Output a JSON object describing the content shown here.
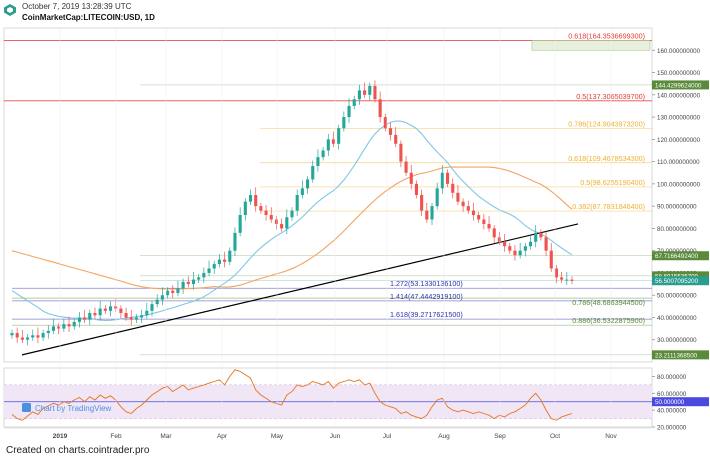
{
  "header": {
    "timestamp": "October 7, 2019 13:28:39 UTC",
    "symbol": "CoinMarketCap:LITECOIN:USD, 1D"
  },
  "footer": {
    "text": "Created on charts.cointrader.pro"
  },
  "watermark": "Chart by TradingView",
  "colors": {
    "candle_up": "#26a69a",
    "candle_down": "#ef5350",
    "ma_fast": "#7ec8e3",
    "ma_slow": "#f4a460",
    "trendline": "#000000",
    "rsi_line": "#e8731c",
    "rsi_band": "#f1e6f6",
    "rsi_mid": "#4a4ae0"
  },
  "chart_data": [
    {
      "type": "candlestick",
      "x_ticks": [
        "2019",
        "Feb",
        "Mar",
        "Apr",
        "May",
        "Jun",
        "Jul",
        "Aug",
        "Sep",
        "Oct",
        "Nov"
      ],
      "y_ticks": [
        "160.000000000",
        "150.000000000",
        "140.000000000",
        "130.000000000",
        "120.000000000",
        "110.000000000",
        "100.000000000",
        "90.000000000",
        "80.000000000",
        "70.000000000",
        "60.000000000",
        "50.000000000",
        "40.000000000",
        "30.000000000"
      ],
      "ylim": [
        20,
        170
      ],
      "price_tags": [
        {
          "label": "144.4299624000",
          "value": 144.43,
          "color": "#5a8a3a"
        },
        {
          "label": "67.7166492400",
          "value": 67.72,
          "color": "#5a8a3a"
        },
        {
          "label": "58.6915535700",
          "value": 58.69,
          "color": "#5a8a3a"
        },
        {
          "label": "56.5007095200",
          "value": 56.5,
          "color": "#2a9d8f"
        },
        {
          "label": "23.2111368500",
          "value": 23.21,
          "color": "#5a8a3a"
        }
      ],
      "fib_levels": [
        {
          "label": "0.618(164.3536699300)",
          "value": 164.35,
          "color": "#e53935"
        },
        {
          "label": "0.5(137.3065039700)",
          "value": 137.31,
          "color": "#e53935"
        },
        {
          "label": "0.786(124.9043973200)",
          "value": 124.9,
          "color": "#f0b030"
        },
        {
          "label": "0.618(109.4678534300)",
          "value": 109.47,
          "color": "#f0b030"
        },
        {
          "label": "0.5(98.6255190400)",
          "value": 98.63,
          "color": "#f0b030"
        },
        {
          "label": "0.382(87.7831846400)",
          "value": 87.78,
          "color": "#f0b030"
        },
        {
          "label": "1.272(53.1330136100)",
          "value": 53.13,
          "color": "#3030b0"
        },
        {
          "label": "1.414(47.4442919100)",
          "value": 47.44,
          "color": "#3030b0"
        },
        {
          "label": "0.786(48.6863944500)",
          "value": 48.69,
          "color": "#5a8a3a"
        },
        {
          "label": "1.618(39.2717621500)",
          "value": 39.27,
          "color": "#3030b0"
        },
        {
          "label": "0.886(36.5322875900)",
          "value": 36.53,
          "color": "#5a8a3a"
        }
      ],
      "closes": [
        33,
        31,
        30,
        31,
        32,
        31,
        33,
        34,
        36,
        35,
        37,
        36,
        38,
        40,
        39,
        42,
        41,
        44,
        43,
        45,
        44,
        42,
        40,
        39,
        40,
        41,
        43,
        46,
        48,
        50,
        52,
        51,
        53,
        56,
        55,
        57,
        58,
        60,
        62,
        64,
        66,
        65,
        70,
        78,
        86,
        92,
        95,
        90,
        88,
        86,
        84,
        82,
        80,
        85,
        88,
        95,
        98,
        102,
        108,
        112,
        115,
        120,
        118,
        125,
        130,
        135,
        138,
        142,
        140,
        144,
        138,
        130,
        125,
        122,
        118,
        110,
        105,
        100,
        95,
        88,
        84,
        90,
        98,
        105,
        100,
        96,
        92,
        90,
        88,
        86,
        84,
        82,
        80,
        76,
        74,
        72,
        70,
        68,
        70,
        72,
        74,
        78,
        76,
        70,
        62,
        58,
        57,
        57,
        56.5
      ]
    },
    {
      "type": "line",
      "name": "RSI",
      "y_ticks": [
        "80.000000",
        "60.000000",
        "40.000000",
        "20.000000"
      ],
      "ylim": [
        20,
        90
      ],
      "mid_label": "50.000000",
      "mid_value": 50,
      "band": [
        30,
        70
      ],
      "values": [
        35,
        30,
        28,
        33,
        38,
        35,
        42,
        45,
        48,
        46,
        50,
        48,
        52,
        55,
        50,
        56,
        52,
        58,
        54,
        57,
        52,
        44,
        38,
        36,
        42,
        46,
        52,
        58,
        62,
        66,
        68,
        62,
        66,
        70,
        64,
        66,
        68,
        70,
        72,
        74,
        76,
        70,
        80,
        88,
        86,
        82,
        78,
        64,
        58,
        54,
        50,
        48,
        46,
        58,
        62,
        70,
        68,
        70,
        74,
        72,
        70,
        74,
        66,
        72,
        74,
        76,
        74,
        76,
        70,
        72,
        60,
        50,
        46,
        44,
        42,
        36,
        38,
        34,
        32,
        30,
        34,
        44,
        52,
        54,
        44,
        40,
        38,
        40,
        38,
        36,
        38,
        36,
        34,
        30,
        34,
        32,
        36,
        38,
        42,
        46,
        54,
        60,
        52,
        40,
        30,
        28,
        32,
        34,
        36
      ]
    }
  ]
}
